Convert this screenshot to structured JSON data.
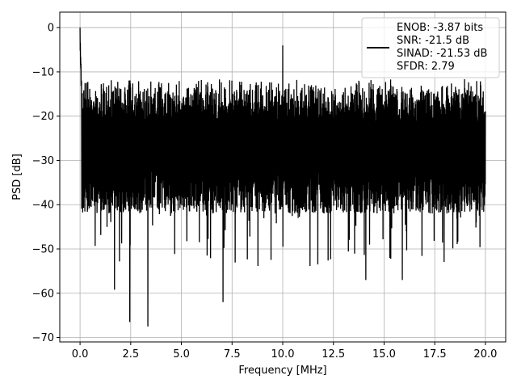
{
  "chart_data": {
    "type": "line",
    "title": "",
    "xlabel": "Frequency [MHz]",
    "ylabel": "PSD [dB]",
    "xlim": [
      -1.0,
      21.0
    ],
    "ylim": [
      -71,
      3.5
    ],
    "xticks": [
      0.0,
      2.5,
      5.0,
      7.5,
      10.0,
      12.5,
      15.0,
      17.5,
      20.0
    ],
    "xtick_labels": [
      "0.0",
      "2.5",
      "5.0",
      "7.5",
      "10.0",
      "12.5",
      "15.0",
      "17.5",
      "20.0"
    ],
    "yticks": [
      0,
      -10,
      -20,
      -30,
      -40,
      -50,
      -60,
      -70
    ],
    "ytick_labels": [
      "0",
      "−10",
      "−20",
      "−30",
      "−40",
      "−50",
      "−60",
      "−70"
    ],
    "grid": true,
    "legend_position": "top-right",
    "legend_entries": [
      "ENOB: -3.87 bits",
      "SNR: -21.5 dB",
      "SINAD: -21.53 dB",
      "SFDR: 2.79"
    ],
    "series": [
      {
        "color": "#000000",
        "noise_floor_db": -25,
        "upper_envelope_db": -13,
        "lower_envelope_db": -40,
        "peaks": [
          {
            "x": 0.0,
            "y": 0.0
          },
          {
            "x": 10.0,
            "y": -4.0
          }
        ],
        "deep_notches": [
          {
            "x": 1.7,
            "y": -59.2
          },
          {
            "x": 2.45,
            "y": -66.5
          },
          {
            "x": 3.35,
            "y": -67.5
          },
          {
            "x": 7.05,
            "y": -62.0
          },
          {
            "x": 14.1,
            "y": -57.0
          },
          {
            "x": 15.9,
            "y": -57.0
          }
        ]
      }
    ]
  }
}
